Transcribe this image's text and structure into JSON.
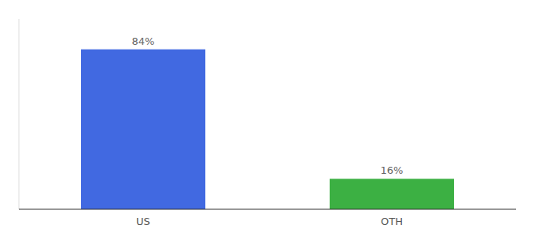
{
  "chart_data": {
    "type": "bar",
    "categories": [
      "US",
      "OTH"
    ],
    "values": [
      84,
      16
    ],
    "value_labels": [
      "84%",
      "16%"
    ],
    "colors": [
      "#4169e1",
      "#3cb043"
    ],
    "ylim": [
      0,
      100
    ],
    "data_labels": true,
    "tick_labels": "x",
    "grid": false
  }
}
